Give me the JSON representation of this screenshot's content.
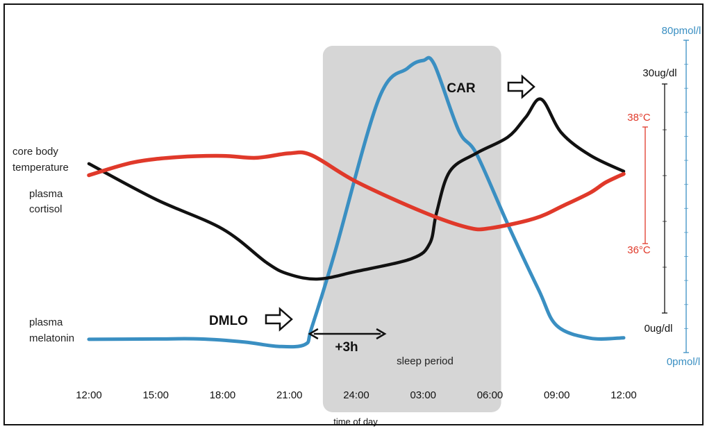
{
  "chart_data": {
    "type": "line",
    "xlabel": "time of day",
    "x_ticks": [
      "12:00",
      "15:00",
      "18:00",
      "21:00",
      "24:00",
      "03:00",
      "06:00",
      "09:00",
      "12:00"
    ],
    "x_range_hours": [
      12,
      36
    ],
    "sleep_period": {
      "label": "sleep period",
      "start": "22:30",
      "end": "06:30"
    },
    "series": [
      {
        "name": "core body temperature",
        "color": "#e0392a",
        "axis": "temperature",
        "points": [
          [
            12,
            37.07
          ],
          [
            14,
            37.27
          ],
          [
            16,
            37.35
          ],
          [
            18,
            37.37
          ],
          [
            19.5,
            37.34
          ],
          [
            21,
            37.41
          ],
          [
            22,
            37.38
          ],
          [
            24,
            36.97
          ],
          [
            27,
            36.5
          ],
          [
            29,
            36.26
          ],
          [
            30,
            36.25
          ],
          [
            32,
            36.4
          ],
          [
            33.3,
            36.6
          ],
          [
            34.5,
            36.8
          ],
          [
            35.2,
            36.96
          ],
          [
            36,
            37.09
          ]
        ]
      },
      {
        "name": "plasma cortisol",
        "color": "#111111",
        "axis": "cortisol",
        "points": [
          [
            12,
            19.5
          ],
          [
            15,
            14.8
          ],
          [
            18,
            10.9
          ],
          [
            20,
            6.4
          ],
          [
            21,
            4.9
          ],
          [
            22.3,
            4.3
          ],
          [
            24,
            5.3
          ],
          [
            26.5,
            7
          ],
          [
            27.3,
            9
          ],
          [
            27.6,
            13
          ],
          [
            28.2,
            18.5
          ],
          [
            29.4,
            20.9
          ],
          [
            30.8,
            23
          ],
          [
            31.6,
            25.6
          ],
          [
            32.3,
            28
          ],
          [
            33.2,
            23.6
          ],
          [
            34.5,
            20.6
          ],
          [
            36,
            18.5
          ]
        ]
      },
      {
        "name": "plasma melatonin",
        "color": "#3a8fc2",
        "axis": "melatonin",
        "points": [
          [
            12,
            2.5
          ],
          [
            15,
            2.6
          ],
          [
            17,
            2.6
          ],
          [
            19,
            1.8
          ],
          [
            20.5,
            0.7
          ],
          [
            21.7,
            1.2
          ],
          [
            22,
            5.5
          ],
          [
            23,
            24
          ],
          [
            25,
            64
          ],
          [
            26.3,
            72
          ],
          [
            27,
            74
          ],
          [
            27.5,
            73
          ],
          [
            28.6,
            56
          ],
          [
            29.4,
            50
          ],
          [
            30.8,
            32
          ],
          [
            32.2,
            15
          ],
          [
            33,
            6
          ],
          [
            34.5,
            2.8
          ],
          [
            36,
            2.9
          ]
        ]
      }
    ],
    "axes": [
      {
        "name": "melatonin",
        "color": "#3a8fc2",
        "range": [
          0,
          80
        ],
        "labels": [
          "80pmol/l",
          "0pmol/l"
        ]
      },
      {
        "name": "cortisol",
        "color": "#111111",
        "range": [
          0,
          30
        ],
        "labels": [
          "30ug/dl",
          "0ug/dl"
        ]
      },
      {
        "name": "temperature",
        "color": "#e0392a",
        "range": [
          36,
          38
        ],
        "labels": [
          "38°C",
          "36°C"
        ]
      }
    ],
    "series_labels": {
      "temperature": [
        "core body",
        "temperature"
      ],
      "cortisol": [
        "plasma",
        "cortisol"
      ],
      "melatonin": [
        "plasma",
        "melatonin"
      ]
    },
    "annotations": {
      "car": {
        "label": "CAR",
        "time": 32.3
      },
      "dmlo": {
        "label": "DMLO",
        "time": 21.7
      },
      "interval": {
        "label": "+3h",
        "from": 22,
        "to": 25
      }
    }
  }
}
